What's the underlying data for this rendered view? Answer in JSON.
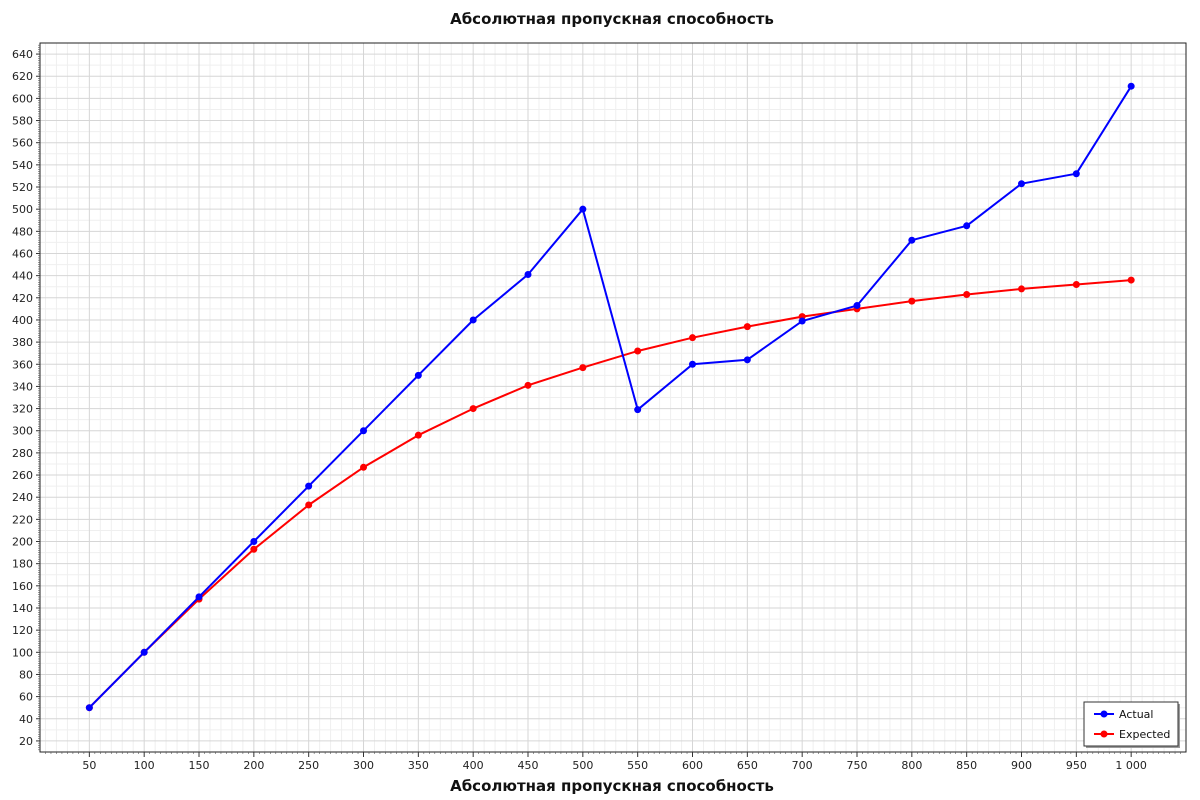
{
  "chart_data": {
    "type": "line",
    "title": "Абсолютная пропускная способность",
    "xlabel": "Абсолютная пропускная способность",
    "ylabel": "",
    "x": [
      50,
      100,
      150,
      200,
      250,
      300,
      350,
      400,
      450,
      500,
      550,
      600,
      650,
      700,
      750,
      800,
      850,
      900,
      950,
      1000
    ],
    "x_tick_labels": [
      "50",
      "100",
      "150",
      "200",
      "250",
      "300",
      "350",
      "400",
      "450",
      "500",
      "550",
      "600",
      "650",
      "700",
      "750",
      "800",
      "850",
      "900",
      "950",
      "1 000"
    ],
    "xlim": [
      5,
      1050
    ],
    "ylim": [
      10,
      650
    ],
    "y_ticks": [
      20,
      40,
      60,
      80,
      100,
      120,
      140,
      160,
      180,
      200,
      220,
      240,
      260,
      280,
      300,
      320,
      340,
      360,
      380,
      400,
      420,
      440,
      460,
      480,
      500,
      520,
      540,
      560,
      580,
      600,
      620,
      640
    ],
    "grid": true,
    "legend_position": "bottom-right",
    "series": [
      {
        "name": "Actual",
        "color": "#0000ff",
        "values": [
          50,
          100,
          150,
          200,
          250,
          300,
          350,
          400,
          441,
          500,
          319,
          360,
          364,
          399,
          413,
          472,
          485,
          523,
          532,
          611
        ]
      },
      {
        "name": "Expected",
        "color": "#ff0000",
        "values": [
          50,
          100,
          148,
          193,
          233,
          267,
          296,
          320,
          341,
          357,
          372,
          384,
          394,
          403,
          410,
          417,
          423,
          428,
          432,
          436
        ]
      }
    ]
  }
}
